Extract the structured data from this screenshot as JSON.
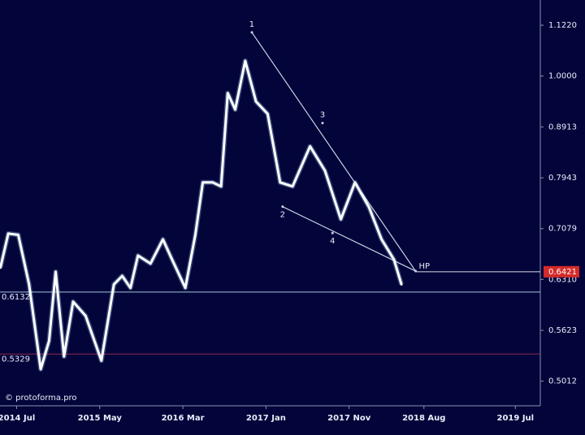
{
  "chart_data": {
    "type": "line",
    "log_scale": true,
    "background": "#03043a",
    "color": "#ffffff",
    "xlim": [
      -2,
      63
    ],
    "ylim": [
      0.474,
      1.188
    ],
    "xticks": [
      {
        "value": 0,
        "label": "2014 Jul"
      },
      {
        "value": 10,
        "label": "2015 May"
      },
      {
        "value": 20,
        "label": "2016 Mar"
      },
      {
        "value": 30,
        "label": "2017 Jan"
      },
      {
        "value": 40,
        "label": "2017 Nov"
      },
      {
        "value": 49,
        "label": "2018 Aug"
      },
      {
        "value": 60,
        "label": "2019 Jul"
      }
    ],
    "yticks": [
      0.5012,
      0.5623,
      {
        "value": 0.631,
        "label": "0.6310"
      },
      0.7079,
      0.7943,
      0.8913,
      {
        "value": 1,
        "label": "1.0000"
      },
      {
        "value": 1.122,
        "label": "1.1220"
      }
    ],
    "x": [
      -1.95,
      -1,
      0.2,
      1.5,
      2.9,
      3.9,
      4.7,
      5.7,
      6.8,
      8.3,
      10.2,
      11.7,
      12.7,
      13.7,
      14.6,
      16.1,
      17.6,
      18.7,
      20.3,
      21.5,
      22.4,
      23.6,
      24.6,
      25.4,
      26.3,
      27.5,
      28.8,
      30.2,
      31.7,
      33.2,
      35.3,
      37.1,
      39,
      40.7,
      42.4,
      43.9,
      45.4,
      46.3
    ],
    "values": [
      0.648,
      0.7,
      0.698,
      0.624,
      0.515,
      0.549,
      0.642,
      0.53,
      0.6,
      0.581,
      0.525,
      0.624,
      0.636,
      0.619,
      0.666,
      0.654,
      0.691,
      0.66,
      0.619,
      0.698,
      0.786,
      0.786,
      0.779,
      0.962,
      0.927,
      1.035,
      0.944,
      0.918,
      0.786,
      0.779,
      0.853,
      0.807,
      0.723,
      0.786,
      0.743,
      0.691,
      0.66,
      0.624
    ],
    "levels": [
      {
        "value": 0.6132,
        "color": "#a9c4d6"
      },
      {
        "value": 0.5329,
        "color": "#8a2a48"
      },
      {
        "value": 0.6421,
        "color": "#d7dde6",
        "start": 48,
        "label_color": "#d42a2a"
      }
    ],
    "waves": [
      {
        "label": "1",
        "x": 28.3,
        "y": 1.104
      },
      {
        "label": "2",
        "x": 32,
        "y": 0.744
      },
      {
        "label": "3",
        "x": 36.8,
        "y": 0.899
      },
      {
        "label": "4",
        "x": 38,
        "y": 0.701
      },
      {
        "label": "HP",
        "x": 48,
        "y": 0.643
      }
    ],
    "trend_color": "#c8d4e4",
    "watermark": "© protoforma.pro"
  }
}
